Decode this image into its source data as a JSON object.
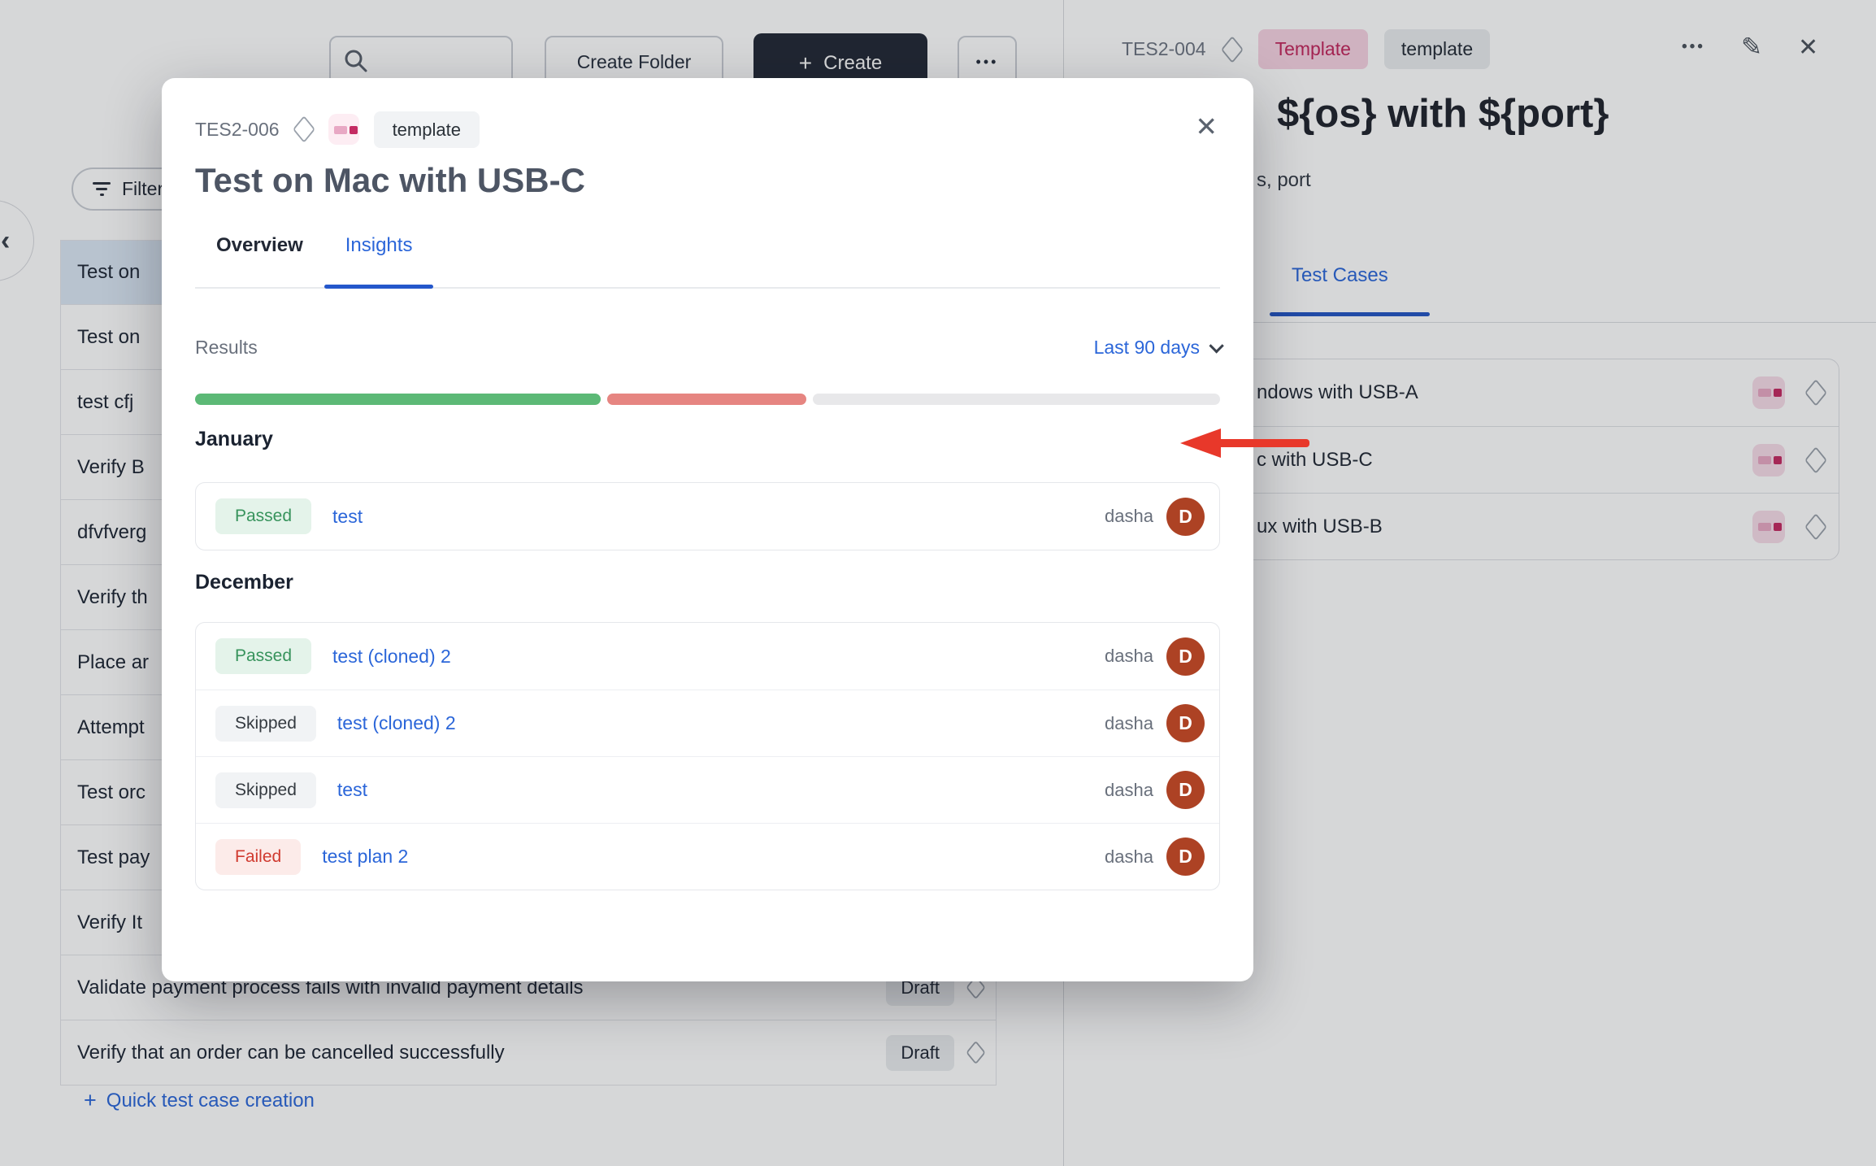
{
  "topbar": {
    "create_folder_label": "Create Folder",
    "create_label": "Create",
    "more_label": "•••"
  },
  "left_panel": {
    "filter_label": "Filter",
    "rows": [
      {
        "label": "Test on",
        "selected": true
      },
      {
        "label": "Test on"
      },
      {
        "label": "test cfj"
      },
      {
        "label": "Verify B"
      },
      {
        "label": "dfvfverg"
      },
      {
        "label": "Verify th"
      },
      {
        "label": "Place ar"
      },
      {
        "label": "Attempt"
      },
      {
        "label": "Test orc"
      },
      {
        "label": "Test pay"
      },
      {
        "label": "Verify It"
      },
      {
        "label": "Validate payment process fails with invalid payment details",
        "status": "Draft"
      },
      {
        "label": "Verify that an order can be cancelled successfully",
        "status": "Draft"
      }
    ],
    "quick_create_label": "Quick test case creation"
  },
  "modal": {
    "case_id": "TES2-006",
    "tag": "template",
    "title": "Test on Mac with USB-C",
    "tabs": [
      {
        "label": "Overview",
        "active": false
      },
      {
        "label": "Insights",
        "active": true
      }
    ],
    "results_label": "Results",
    "period_label": "Last 90 days",
    "progress": {
      "passed_pct": 39.6,
      "failed_pct": 19.4,
      "other_pct": 41.0
    },
    "groups": [
      {
        "month": "January",
        "rows": [
          {
            "status": "Passed",
            "name": "test",
            "user": "dasha",
            "avatar_initial": "D"
          }
        ]
      },
      {
        "month": "December",
        "rows": [
          {
            "status": "Passed",
            "name": "test (cloned) 2",
            "user": "dasha",
            "avatar_initial": "D"
          },
          {
            "status": "Skipped",
            "name": "test (cloned) 2",
            "user": "dasha",
            "avatar_initial": "D"
          },
          {
            "status": "Skipped",
            "name": "test",
            "user": "dasha",
            "avatar_initial": "D"
          },
          {
            "status": "Failed",
            "name": "test plan 2",
            "user": "dasha",
            "avatar_initial": "D"
          }
        ]
      }
    ]
  },
  "drawer": {
    "case_id": "TES2-004",
    "template_badge": "Template",
    "tag": "template",
    "title_fragment": "${os} with ${port}",
    "subtitle_fragment": "s, port",
    "tab_label": "Test Cases",
    "rows": [
      {
        "label_fragment": "ndows with USB-A"
      },
      {
        "label_fragment": "c with USB-C"
      },
      {
        "label_fragment": "ux with USB-B"
      }
    ]
  },
  "icons": {
    "collapse": "‹",
    "close": "✕",
    "more": "•••",
    "edit": "✎",
    "plus": "+"
  },
  "colors": {
    "accent_blue": "#2b66d9",
    "progress_passed_green": "#5cb976",
    "progress_failed_red": "#e68581",
    "progress_rest_gray": "#e8e8ea",
    "passed_badge_bg": "#e4f3ea",
    "passed_badge_text": "#37935c",
    "skipped_badge_bg": "#f1f3f5",
    "skipped_badge_text": "#343a40",
    "failed_badge_bg": "#fcebe9",
    "failed_badge_text": "#d03a2f",
    "template_pill_bg": "#f7d3e2",
    "template_pill_text": "#c2255c",
    "avatar_bg": "#ad4224",
    "create_button_bg": "#232936",
    "annotation_arrow_red": "#e8382a"
  }
}
